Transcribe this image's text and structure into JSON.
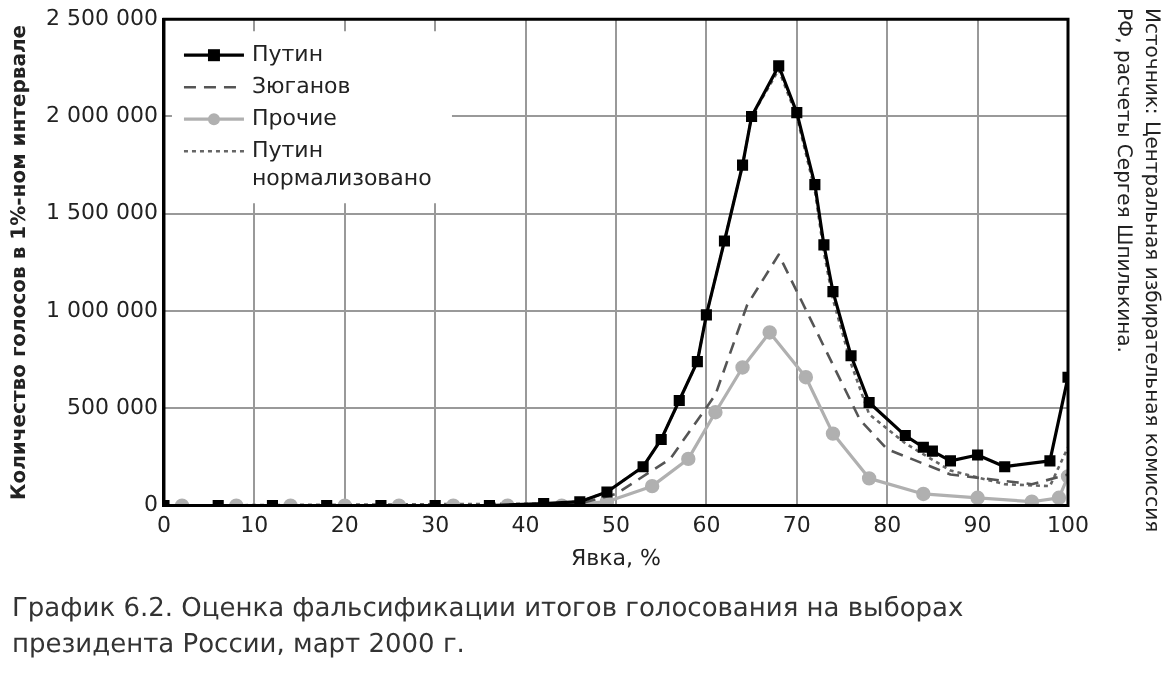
{
  "chart_data": {
    "type": "line",
    "title": "График 6.2. Оценка фальсификации итогов голосования на выборах президента России, март 2000 г.",
    "xlabel": "Явка, %",
    "ylabel": "Количество голосов в 1%-ном интервале",
    "annotations": [
      "Источник: Центральная избирательная комиссия РФ, расчеты Сергея Шпилькина."
    ],
    "xlim": [
      0,
      100
    ],
    "xticks": [
      0,
      10,
      20,
      30,
      40,
      50,
      60,
      70,
      80,
      90,
      100
    ],
    "ylim": [
      0,
      2500000
    ],
    "yticks": [
      {
        "value": 0,
        "label": "0"
      },
      {
        "value": 500000,
        "label": "500 000"
      },
      {
        "value": 1000000,
        "label": "1 000 000"
      },
      {
        "value": 1500000,
        "label": "1 500 000"
      },
      {
        "value": 2000000,
        "label": "2 000 000"
      },
      {
        "value": 2500000,
        "label": "2 500 000"
      }
    ],
    "grid": true,
    "legend": "top left",
    "series": [
      {
        "name": "Путин",
        "color": "#000000",
        "marker": "square",
        "line_style": "solid",
        "x": [
          0,
          6,
          12,
          18,
          24,
          30,
          36,
          42,
          46,
          49,
          53,
          55,
          57,
          59,
          60,
          62,
          64,
          65,
          68,
          70,
          72,
          73,
          74,
          76,
          78,
          82,
          84,
          85,
          87,
          90,
          93,
          98,
          100
        ],
        "values": [
          0,
          0,
          0,
          0,
          0,
          0,
          0,
          10000,
          20000,
          70000,
          200000,
          340000,
          540000,
          740000,
          980000,
          1360000,
          1750000,
          2000000,
          2260000,
          2020000,
          1650000,
          1340000,
          1100000,
          770000,
          530000,
          360000,
          300000,
          280000,
          230000,
          260000,
          200000,
          230000,
          660000
        ]
      },
      {
        "name": "Зюганов",
        "color": "#555555",
        "marker": "none",
        "line_style": "dashed",
        "x": [
          0,
          42,
          46,
          50,
          56,
          61,
          64.5,
          68,
          71.5,
          77,
          80,
          87,
          96,
          100
        ],
        "values": [
          0,
          0,
          10000,
          60000,
          240000,
          570000,
          1030000,
          1290000,
          960000,
          440000,
          290000,
          160000,
          110000,
          160000
        ]
      },
      {
        "name": "Прочие",
        "color": "#b0b0b0",
        "marker": "circle",
        "line_style": "solid",
        "x": [
          2,
          8,
          14,
          20,
          26,
          32,
          38,
          44,
          49,
          54,
          58,
          61,
          64,
          67,
          71,
          74,
          78,
          84,
          90,
          96,
          99,
          100
        ],
        "values": [
          0,
          0,
          0,
          0,
          0,
          0,
          0,
          0,
          20000,
          100000,
          240000,
          480000,
          710000,
          890000,
          660000,
          370000,
          140000,
          60000,
          40000,
          20000,
          40000,
          150000
        ]
      },
      {
        "name": "Путин нормализовано",
        "color": "#666666",
        "marker": "none",
        "line_style": "dotted",
        "x": [
          0,
          42,
          46,
          49,
          53,
          55,
          57,
          59,
          60,
          62,
          64,
          65,
          68,
          70,
          72,
          73,
          74,
          76,
          78,
          82,
          87,
          93,
          98,
          100
        ],
        "values": [
          0,
          10000,
          20000,
          70000,
          200000,
          340000,
          540000,
          740000,
          980000,
          1360000,
          1750000,
          2000000,
          2240000,
          2000000,
          1620000,
          1300000,
          1060000,
          730000,
          470000,
          320000,
          180000,
          110000,
          100000,
          300000
        ]
      }
    ]
  }
}
